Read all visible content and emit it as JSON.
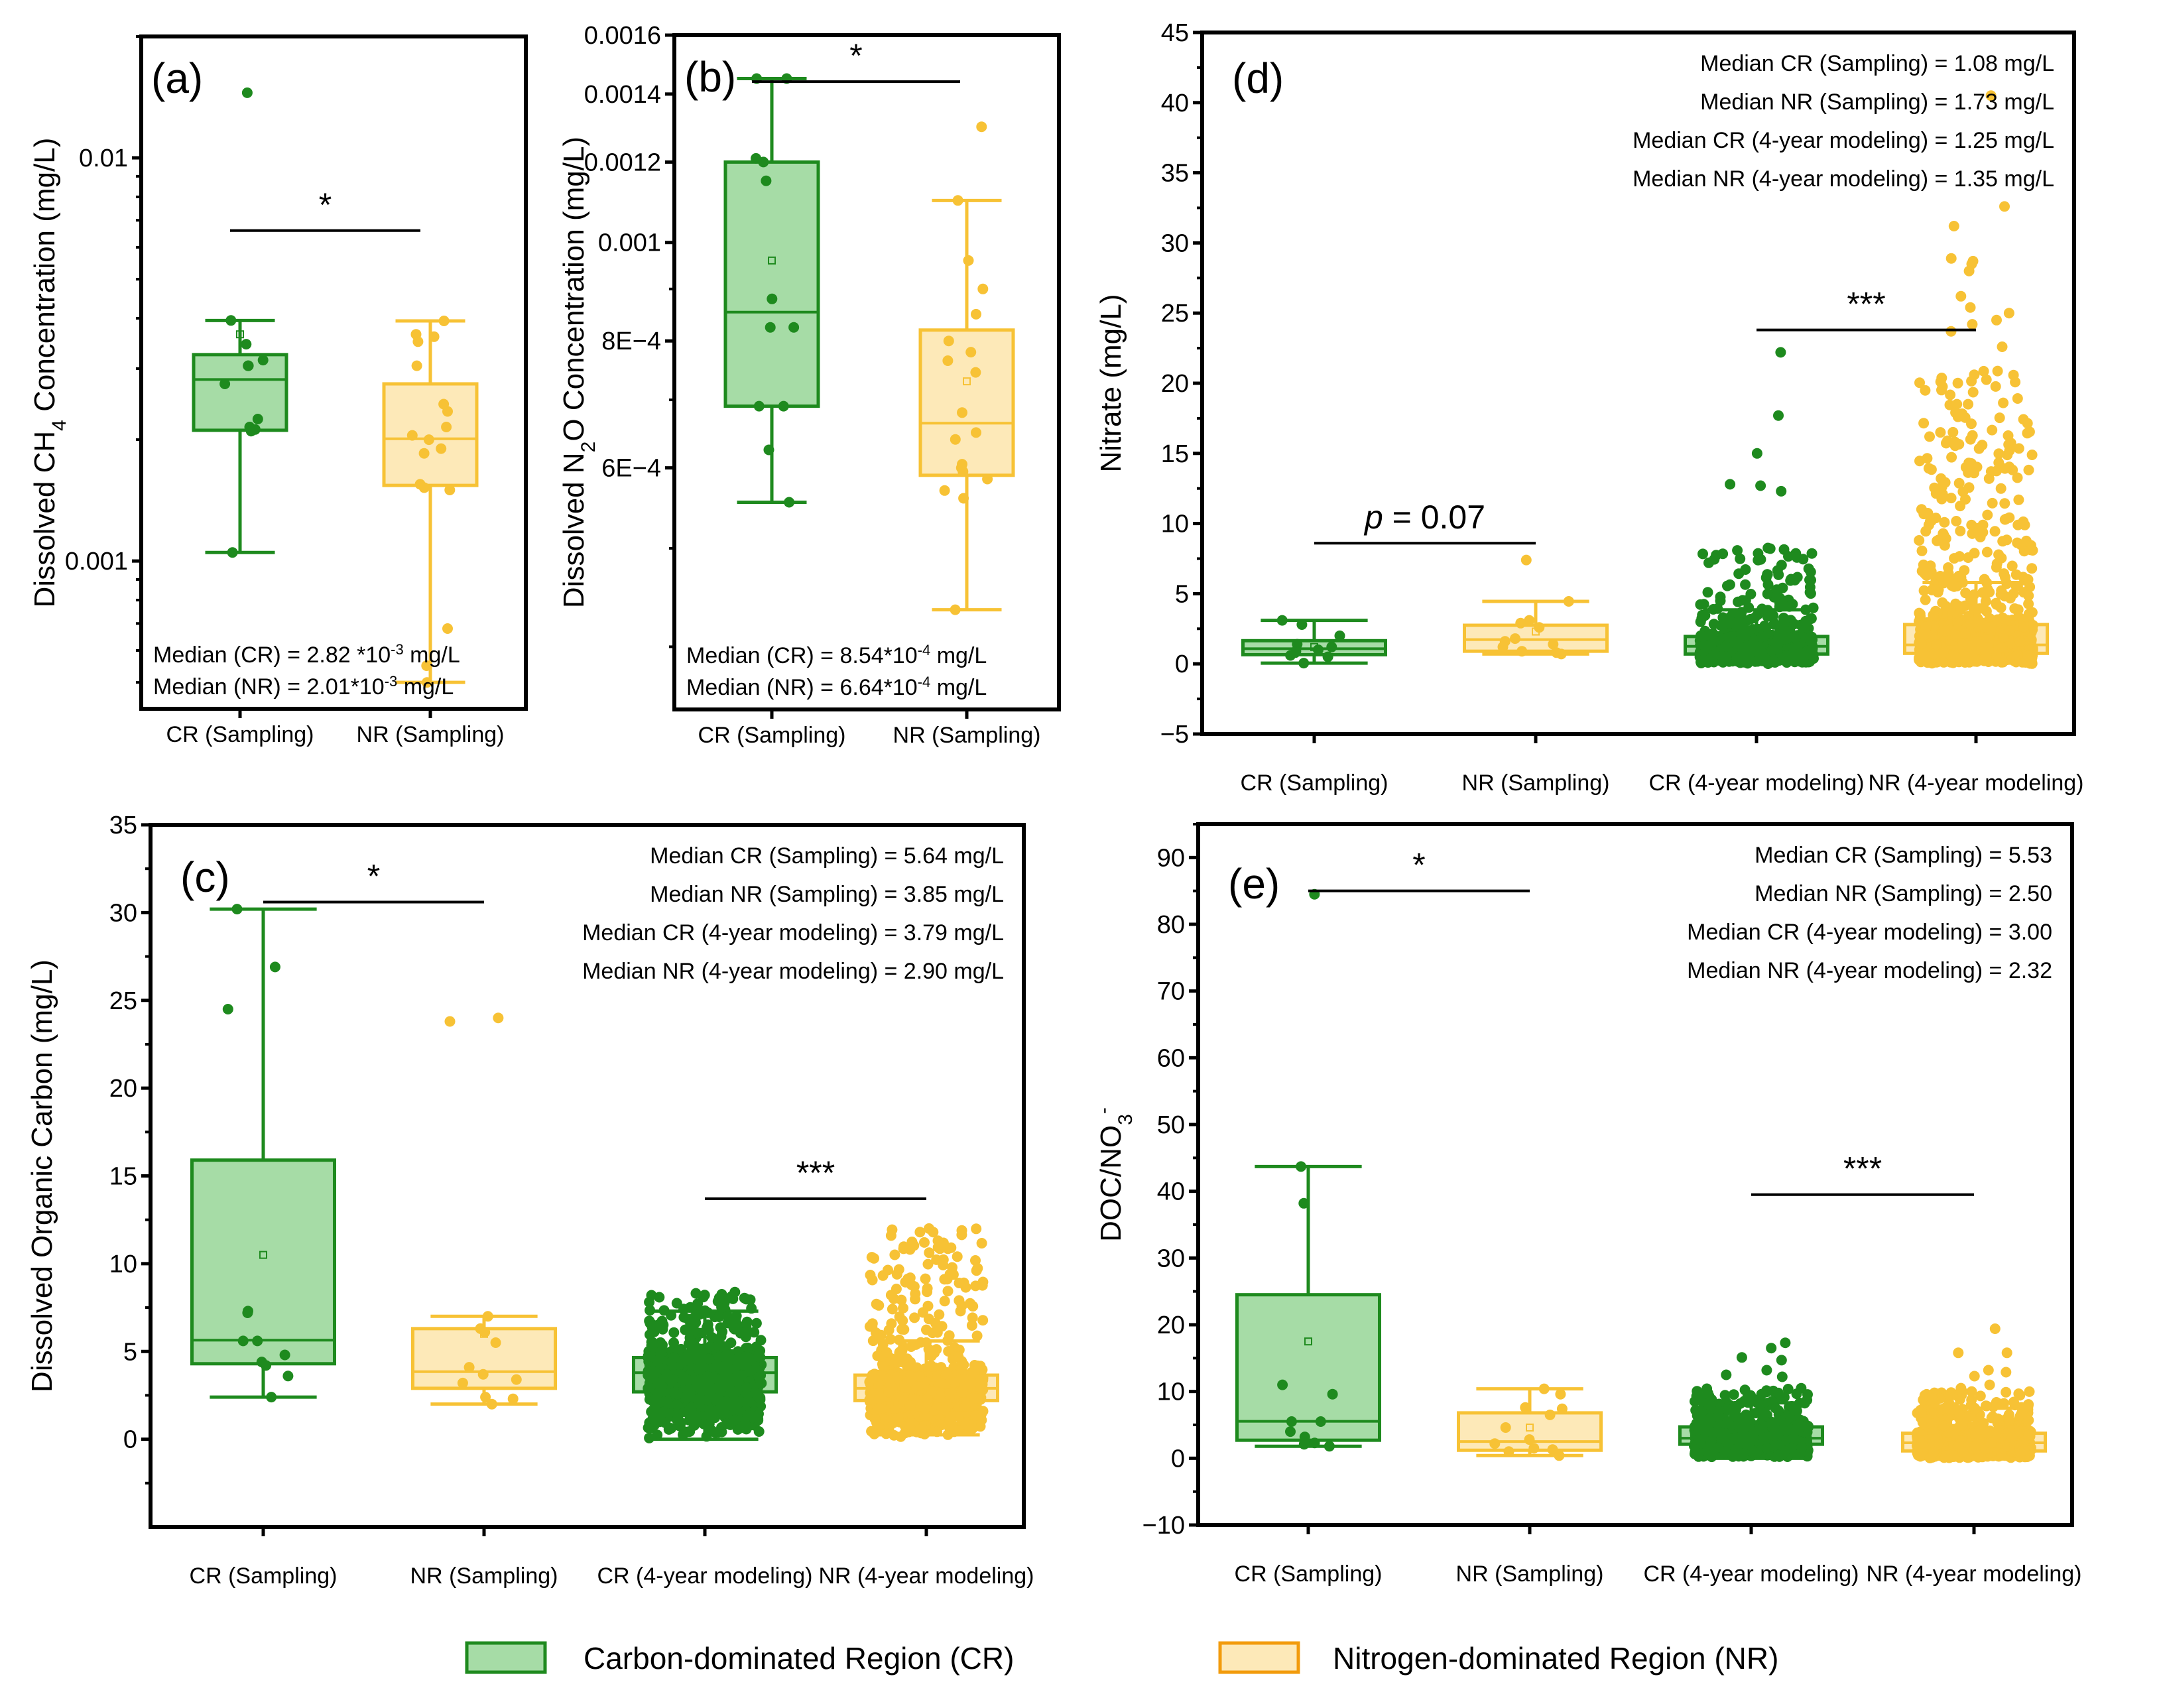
{
  "colors": {
    "cr_fill": "#a6dca6",
    "cr_stroke": "#1e8a1e",
    "nr_fill": "#fde9b8",
    "nr_stroke": "#f7c235",
    "legend_nr_stroke": "#f29b0c"
  },
  "legend": {
    "items": [
      {
        "label": "Carbon-dominated Region (CR)",
        "group": "cr"
      },
      {
        "label": "Nitrogen-dominated Region (NR)",
        "group": "nr"
      }
    ]
  },
  "chart_data": [
    {
      "id": "a",
      "type": "box",
      "tag": "(a)",
      "ylabel": "Dissolved CH4 Concentration (mg/L)",
      "ylabel_parts": [
        "Dissolved CH",
        "4",
        " Concentration (mg/L)"
      ],
      "yscale": "log",
      "ylim": [
        0.00043,
        0.02
      ],
      "yticks": [
        0.001,
        0.01
      ],
      "ytick_labels": [
        "0.001",
        "0.01"
      ],
      "categories": [
        "CR (Sampling)",
        "NR (Sampling)"
      ],
      "notes": [
        "Median (CR) = 2.82 *10^-3 mg/L",
        "Median (NR) = 2.01*10^-3 mg/L"
      ],
      "notes_parts": [
        [
          "Median (CR) = 2.82 *10",
          "-3",
          " mg/L"
        ],
        [
          "Median (NR) = 2.01*10",
          "-3",
          " mg/L"
        ]
      ],
      "notes_position": "bottom-left",
      "significance": [
        {
          "from": 0,
          "to": 1,
          "label": "*",
          "y": 0.0066
        }
      ],
      "boxes": [
        {
          "group": "cr",
          "q1": 0.00211,
          "median": 0.00282,
          "q3": 0.00325,
          "whisker_low": 0.00105,
          "whisker_high": 0.00395,
          "mean": 0.00365,
          "points": [
            0.0145,
            0.00395,
            0.00345,
            0.00315,
            0.00305,
            0.00305,
            0.00275,
            0.00225,
            0.00215,
            0.00212,
            0.0021,
            0.00105
          ]
        },
        {
          "group": "nr",
          "q1": 0.00154,
          "median": 0.00201,
          "q3": 0.00275,
          "whisker_low": 0.0005,
          "whisker_high": 0.00394,
          "mean": null,
          "points": [
            0.00394,
            0.00365,
            0.0036,
            0.0035,
            0.00305,
            0.00245,
            0.00235,
            0.00215,
            0.00205,
            0.002,
            0.0019,
            0.00185,
            0.00155,
            0.00152,
            0.0015,
            0.00068,
            0.00055,
            0.0005
          ]
        }
      ]
    },
    {
      "id": "b",
      "type": "box",
      "tag": "(b)",
      "ylabel": "Dissolved N2O Concentration (mg/L)",
      "ylabel_parts": [
        "Dissolved N",
        "2",
        "O Concentration (mg/L)"
      ],
      "yscale": "log",
      "ylim": [
        0.000347,
        0.0016
      ],
      "yticks": [
        0.0006,
        0.0008,
        0.001,
        0.0012,
        0.0014,
        0.0016
      ],
      "ytick_labels": [
        "6E−4",
        "8E−4",
        "0.001",
        "0.0012",
        "0.0014",
        "0.0016"
      ],
      "categories": [
        "CR (Sampling)",
        "NR (Sampling)"
      ],
      "notes": [
        "Median (CR) = 8.54*10^-4 mg/L",
        "Median (NR) = 6.64*10^-4 mg/L"
      ],
      "notes_parts": [
        [
          "Median (CR) = 8.54*10",
          "-4",
          " mg/L"
        ],
        [
          "Median (NR) = 6.64*10",
          "-4",
          " mg/L"
        ]
      ],
      "notes_position": "bottom-left",
      "significance": [
        {
          "from": 0,
          "to": 1,
          "label": "*",
          "y": 0.00144
        }
      ],
      "boxes": [
        {
          "group": "cr",
          "q1": 0.00069,
          "median": 0.000854,
          "q3": 0.0012,
          "whisker_low": 0.000555,
          "whisker_high": 0.00145,
          "mean": 0.00096,
          "points": [
            0.00145,
            0.00145,
            0.00121,
            0.0012,
            0.00115,
            0.00088,
            0.000825,
            0.000825,
            0.00069,
            0.00069,
            0.000625,
            0.000555
          ]
        },
        {
          "group": "nr",
          "q1": 0.00059,
          "median": 0.000664,
          "q3": 0.00082,
          "whisker_low": 0.000435,
          "whisker_high": 0.0011,
          "mean": 0.00073,
          "points": [
            0.0013,
            0.0011,
            0.00096,
            0.0009,
            0.00085,
            0.0008,
            0.00078,
            0.000765,
            0.000745,
            0.00068,
            0.00065,
            0.00064,
            0.0006,
            0.000605,
            0.000595,
            0.000585,
            0.00056,
            0.00057,
            0.000435
          ]
        }
      ]
    },
    {
      "id": "c",
      "type": "box",
      "tag": "(c)",
      "ylabel": "Dissolved Organic Carbon (mg/L)",
      "yscale": "linear",
      "ylim": [
        -5,
        35
      ],
      "yticks": [
        0,
        5,
        10,
        15,
        20,
        25,
        30,
        35
      ],
      "ytick_labels": [
        "0",
        "5",
        "10",
        "15",
        "20",
        "25",
        "30",
        "35"
      ],
      "categories": [
        "CR (Sampling)",
        "NR (Sampling)",
        "CR (4-year modeling)",
        "NR (4-year modeling)"
      ],
      "notes": [
        "Median CR (Sampling) = 5.64 mg/L",
        "Median NR (Sampling) = 3.85 mg/L",
        "Median CR (4-year modeling) = 3.79 mg/L",
        "Median NR (4-year modeling) = 2.90 mg/L"
      ],
      "notes_position": "top-right",
      "significance": [
        {
          "from": 0,
          "to": 1,
          "label": "*",
          "y": 30.6
        },
        {
          "from": 2,
          "to": 3,
          "label": "***",
          "y": 13.7
        }
      ],
      "boxes": [
        {
          "group": "cr",
          "q1": 4.3,
          "median": 5.64,
          "q3": 15.9,
          "whisker_low": 2.4,
          "whisker_high": 30.2,
          "mean": 10.5,
          "points": [
            30.2,
            26.9,
            24.5,
            7.3,
            7.2,
            5.6,
            5.6,
            4.8,
            4.4,
            4.2,
            3.6,
            2.4
          ]
        },
        {
          "group": "nr",
          "q1": 2.9,
          "median": 3.85,
          "q3": 6.3,
          "whisker_low": 2.0,
          "whisker_high": 7.0,
          "mean": 6.0,
          "points": [
            24.0,
            23.8,
            7.0,
            6.3,
            6.1,
            5.5,
            4.1,
            3.7,
            3.4,
            3.2,
            2.4,
            2.3,
            2.0
          ]
        },
        {
          "group": "cr",
          "q1": 2.7,
          "median": 3.79,
          "q3": 4.65,
          "whisker_low": 0.0,
          "whisker_high": 7.3,
          "mean": null,
          "dense": {
            "n": 900,
            "min": 0.0,
            "max": 8.4
          }
        },
        {
          "group": "nr",
          "q1": 2.2,
          "median": 2.9,
          "q3": 3.65,
          "whisker_low": 0.25,
          "whisker_high": 5.6,
          "mean": null,
          "dense": {
            "n": 900,
            "min": 0.0,
            "max": 12.0
          },
          "points": [
            12.0,
            11.8,
            11.6,
            9.4,
            9.2,
            8.9,
            8.7,
            8.4,
            8.0,
            7.6,
            7.3
          ]
        }
      ]
    },
    {
      "id": "d",
      "type": "box",
      "tag": "(d)",
      "ylabel": "Nitrate (mg/L)",
      "yscale": "linear",
      "ylim": [
        -5,
        45
      ],
      "yticks": [
        -5,
        0,
        5,
        10,
        15,
        20,
        25,
        30,
        35,
        40,
        45
      ],
      "ytick_labels": [
        "−5",
        "0",
        "5",
        "10",
        "15",
        "20",
        "25",
        "30",
        "35",
        "40",
        "45"
      ],
      "categories": [
        "CR (Sampling)",
        "NR (Sampling)",
        "CR (4-year modeling)",
        "NR (4-year modeling)"
      ],
      "notes": [
        "Median CR (Sampling) = 1.08 mg/L",
        "Median NR (Sampling) = 1.73 mg/L",
        "Median CR (4-year modeling) = 1.25 mg/L",
        "Median NR (4-year modeling) = 1.35 mg/L"
      ],
      "notes_position": "top-right",
      "significance": [
        {
          "from": 0,
          "to": 1,
          "label": "p = 0.07",
          "italic_prefix": "p",
          "y": 8.6
        },
        {
          "from": 2,
          "to": 3,
          "label": "***",
          "y": 23.8
        }
      ],
      "boxes": [
        {
          "group": "cr",
          "q1": 0.65,
          "median": 1.08,
          "q3": 1.65,
          "whisker_low": 0.05,
          "whisker_high": 3.1,
          "mean": 1.2,
          "points": [
            3.1,
            2.8,
            2.0,
            1.4,
            1.2,
            1.0,
            0.9,
            0.8,
            0.6,
            0.5,
            0.05
          ]
        },
        {
          "group": "nr",
          "q1": 0.9,
          "median": 1.73,
          "q3": 2.75,
          "whisker_low": 0.7,
          "whisker_high": 4.45,
          "mean": 2.3,
          "points": [
            7.4,
            4.45,
            3.1,
            2.9,
            2.6,
            1.8,
            1.6,
            1.4,
            1.2,
            0.9,
            0.8,
            0.7
          ]
        },
        {
          "group": "cr",
          "q1": 0.7,
          "median": 1.25,
          "q3": 1.95,
          "whisker_low": 0.2,
          "whisker_high": 3.85,
          "mean": null,
          "dense": {
            "n": 900,
            "min": 0.0,
            "max": 8.3
          },
          "points": [
            22.2,
            17.7,
            15.0,
            12.8,
            12.7,
            12.3
          ]
        },
        {
          "group": "nr",
          "q1": 0.75,
          "median": 1.35,
          "q3": 2.8,
          "whisker_low": 0.05,
          "whisker_high": 5.8,
          "mean": null,
          "dense": {
            "n": 1500,
            "min": 0.0,
            "max": 21.0
          },
          "points": [
            40.5,
            32.6,
            31.2,
            28.9,
            28.7,
            28.5,
            28.0,
            26.2,
            25.4,
            25.0,
            24.5,
            24.2,
            23.7,
            22.6
          ]
        }
      ]
    },
    {
      "id": "e",
      "type": "box",
      "tag": "(e)",
      "ylabel": "DOC/NO3-",
      "ylabel_parts": [
        "DOC/NO",
        "3",
        "-"
      ],
      "yscale": "linear",
      "ylim": [
        -10,
        95
      ],
      "yticks": [
        -10,
        0,
        10,
        20,
        30,
        40,
        50,
        60,
        70,
        80,
        90
      ],
      "ytick_labels": [
        "−10",
        "0",
        "10",
        "20",
        "30",
        "40",
        "50",
        "60",
        "70",
        "80",
        "90"
      ],
      "categories": [
        "CR (Sampling)",
        "NR (Sampling)",
        "CR (4-year modeling)",
        "NR (4-year modeling)"
      ],
      "notes": [
        "Median CR (Sampling) = 5.53",
        "Median NR (Sampling) = 2.50",
        "Median CR (4-year modeling) = 3.00",
        "Median NR (4-year modeling) = 2.32"
      ],
      "notes_position": "top-right",
      "significance": [
        {
          "from": 0,
          "to": 1,
          "label": "*",
          "y": 85
        },
        {
          "from": 2,
          "to": 3,
          "label": "***",
          "y": 39.5
        }
      ],
      "boxes": [
        {
          "group": "cr",
          "q1": 2.7,
          "median": 5.53,
          "q3": 24.5,
          "whisker_low": 1.8,
          "whisker_high": 43.7,
          "mean": 17.5,
          "points": [
            84.5,
            43.7,
            38.2,
            11.0,
            9.6,
            5.5,
            5.5,
            4.0,
            3.2,
            2.3,
            2.1,
            1.8
          ]
        },
        {
          "group": "nr",
          "q1": 1.2,
          "median": 2.5,
          "q3": 6.8,
          "whisker_low": 0.4,
          "whisker_high": 10.4,
          "mean": 4.6,
          "points": [
            10.4,
            9.6,
            7.6,
            7.4,
            6.5,
            4.6,
            2.8,
            2.2,
            1.5,
            1.3,
            1.0,
            0.4
          ]
        },
        {
          "group": "cr",
          "q1": 2.1,
          "median": 3.0,
          "q3": 4.7,
          "whisker_low": 0.0,
          "whisker_high": 8.3,
          "mean": null,
          "dense": {
            "n": 900,
            "min": 0.0,
            "max": 10.5
          },
          "points": [
            17.3,
            16.5,
            15.1,
            14.7,
            13.2,
            12.5,
            12.2
          ]
        },
        {
          "group": "nr",
          "q1": 1.1,
          "median": 2.32,
          "q3": 3.75,
          "whisker_low": 0.0,
          "whisker_high": 7.5,
          "mean": null,
          "dense": {
            "n": 1200,
            "min": 0.0,
            "max": 10.0
          },
          "points": [
            19.4,
            15.8,
            15.8,
            13.2,
            12.9,
            12.3,
            11.0,
            10.5
          ]
        }
      ]
    }
  ]
}
